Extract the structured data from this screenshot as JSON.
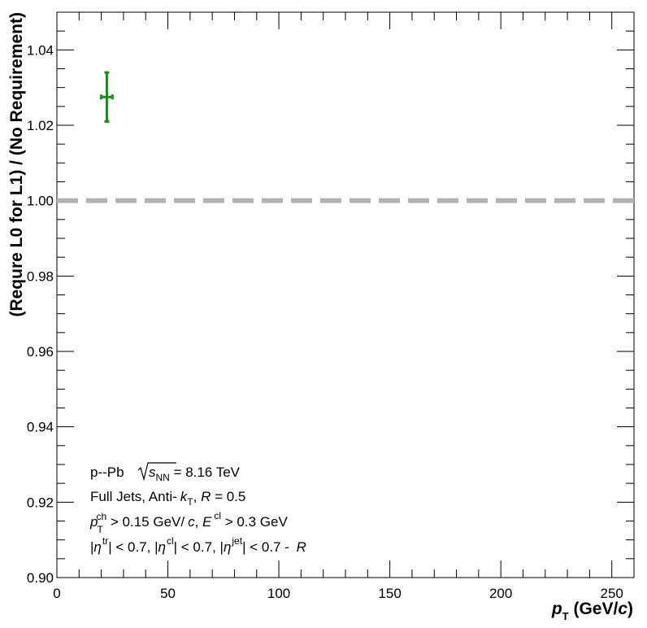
{
  "chart_data": {
    "type": "scatter",
    "xlabel": {
      "main": "p",
      "sub": "T",
      "unit": " (GeV/",
      "unit_c": "c",
      "close": ")"
    },
    "ylabel": "(Requre L0 for L1) / (No Requirement)",
    "xlim": [
      0,
      260
    ],
    "ylim": [
      0.9,
      1.05
    ],
    "x_ticks": [
      0,
      50,
      100,
      150,
      200,
      250
    ],
    "x_tick_labels": [
      "0",
      "50",
      "100",
      "150",
      "200",
      "250"
    ],
    "y_ticks": [
      0.9,
      0.92,
      0.94,
      0.96,
      0.98,
      1.0,
      1.02,
      1.04
    ],
    "y_tick_labels": [
      "0.90",
      "0.92",
      "0.94",
      "0.96",
      "0.98",
      "1.00",
      "1.02",
      "1.04"
    ],
    "grid": false,
    "reference_line": {
      "y": 1.0,
      "style": "dashed",
      "color": "#b3b3b3"
    },
    "series": [
      {
        "color": "#1a8c1a",
        "points": [
          {
            "x": 22.5,
            "y": 1.0275,
            "y_err": 0.0065,
            "x_err": 2.5
          }
        ]
      }
    ],
    "annotations": {
      "line1": {
        "pre": "p--Pb",
        "s": "s",
        "s_sub": "NN",
        "post": " = 8.16 TeV"
      },
      "line2": {
        "pre": "Full Jets, Anti-",
        "k": "k",
        "k_sub": "T",
        "mid": ", ",
        "R": "R",
        "post": " = 0.5"
      },
      "line3": {
        "p": "p",
        "p_sub": "T",
        "p_sup": "ch",
        "a": " > 0.15 GeV/",
        "c": "c",
        "b": ", ",
        "E": "E",
        "E_sup": "cl",
        "post": " > 0.3 GeV"
      },
      "line4": {
        "a": "|",
        "eta1": "η",
        "sup1": "tr",
        "b": "| < 0.7, |",
        "eta2": "η",
        "sup2": "cl",
        "c": "| < 0.7, |",
        "eta3": "η",
        "sup3": "jet",
        "d": "| < 0.7 - ",
        "R": "R"
      }
    }
  }
}
